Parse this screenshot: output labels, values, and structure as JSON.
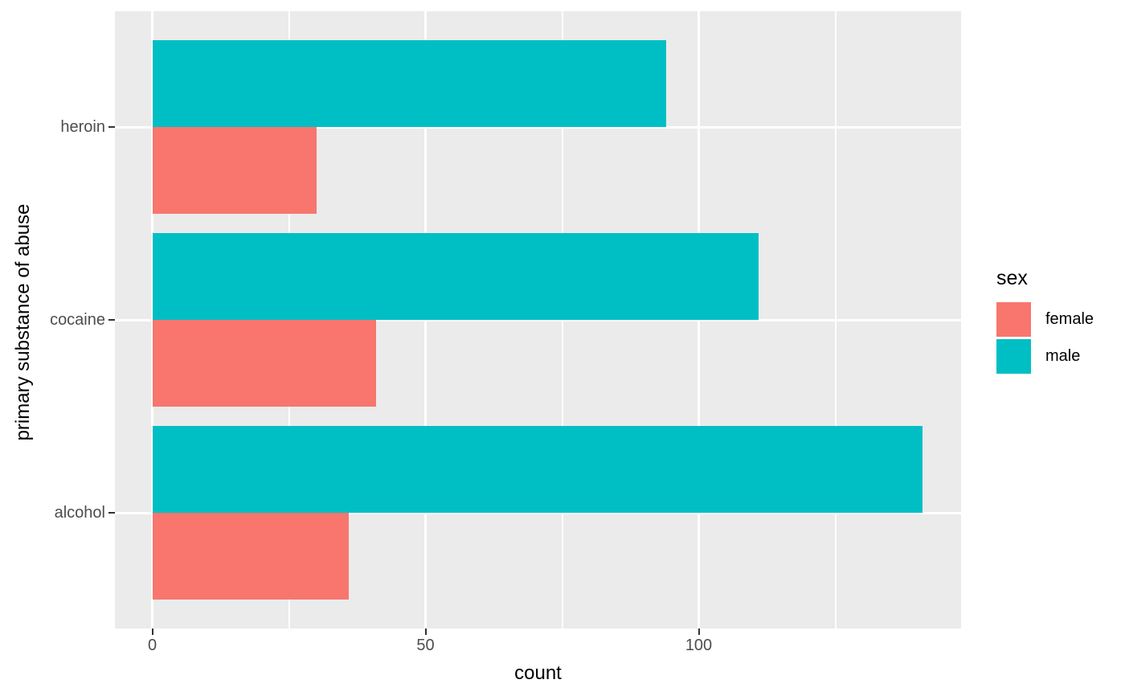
{
  "chart_data": {
    "type": "bar",
    "orientation": "horizontal",
    "bar_grouping": "dodge",
    "title": "",
    "xlabel": "count",
    "ylabel": "primary substance of abuse",
    "categories": [
      "heroin",
      "cocaine",
      "alcohol"
    ],
    "series": [
      {
        "name": "male",
        "color": "#00BFC4",
        "values": [
          94,
          111,
          141
        ]
      },
      {
        "name": "female",
        "color": "#F8766D",
        "values": [
          30,
          41,
          36
        ]
      }
    ],
    "x_ticks": [
      0,
      50,
      100
    ],
    "x_minor_gridlines": [
      25,
      75,
      125
    ],
    "xlim": [
      -7,
      148
    ],
    "grid": true,
    "legend": {
      "title": "sex",
      "position": "right",
      "entries": [
        {
          "label": "female",
          "color": "#F8766D"
        },
        {
          "label": "male",
          "color": "#00BFC4"
        }
      ]
    },
    "style": {
      "panel_background": "#EBEBEB",
      "gridline_color": "#FFFFFF",
      "tick_label_color": "#4D4D4D",
      "axis_title_color": "#000000"
    }
  }
}
